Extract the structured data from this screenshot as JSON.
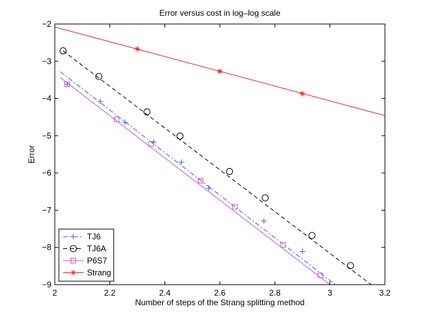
{
  "chart_data": {
    "type": "line",
    "title": "Error versus cost in log–log scale",
    "xlabel": "Number of steps of the Strang splitting method",
    "ylabel": "Error",
    "xlim": [
      2,
      3.2
    ],
    "ylim": [
      -9,
      -2
    ],
    "x_ticks": [
      2,
      2.2,
      2.4,
      2.6,
      2.8,
      3,
      3.2
    ],
    "x_tick_labels": [
      "2",
      "2.2",
      "2.4",
      "2.6",
      "2.8",
      "3",
      "3.2"
    ],
    "y_ticks": [
      -9,
      -8,
      -7,
      -6,
      -5,
      -4,
      -3,
      -2
    ],
    "y_tick_labels": [
      "−9",
      "−8",
      "−7",
      "−6",
      "−5",
      "−4",
      "−3",
      "−2"
    ],
    "grid": false,
    "legend_position": "bottom-left",
    "series": [
      {
        "name": "TJ6",
        "color": "#3b5bdb",
        "line_style": "dashdot",
        "marker": "plus",
        "line": [
          [
            2.02,
            -3.28
          ],
          [
            3.02,
            -9.0
          ]
        ],
        "markers": [
          [
            2.045,
            -3.62
          ],
          [
            2.165,
            -4.08
          ],
          [
            2.255,
            -4.64
          ],
          [
            2.36,
            -5.17
          ],
          [
            2.46,
            -5.71
          ],
          [
            2.56,
            -6.41
          ],
          [
            2.76,
            -7.29
          ],
          [
            2.9,
            -8.11
          ]
        ]
      },
      {
        "name": "TJ6A",
        "color": "#000000",
        "line_style": "dashed",
        "marker": "circle",
        "line": [
          [
            2.03,
            -2.72
          ],
          [
            3.15,
            -9.0
          ]
        ],
        "markers": [
          [
            2.03,
            -2.72
          ],
          [
            2.16,
            -3.41
          ],
          [
            2.335,
            -4.36
          ],
          [
            2.455,
            -5.01
          ],
          [
            2.635,
            -5.96
          ],
          [
            2.765,
            -6.67
          ],
          [
            2.935,
            -7.68
          ],
          [
            3.075,
            -8.49
          ]
        ]
      },
      {
        "name": "P6S7",
        "color": "#c45cd6",
        "line_style": "solid",
        "marker": "square",
        "line": [
          [
            2.02,
            -3.44
          ],
          [
            3.0,
            -9.0
          ]
        ],
        "markers": [
          [
            2.045,
            -3.62
          ],
          [
            2.225,
            -4.56
          ],
          [
            2.35,
            -5.22
          ],
          [
            2.53,
            -6.21
          ],
          [
            2.655,
            -6.91
          ],
          [
            2.83,
            -7.93
          ],
          [
            2.965,
            -8.75
          ]
        ]
      },
      {
        "name": "Strang",
        "color": "#e8272e",
        "line_style": "solid",
        "marker": "asterisk",
        "line": [
          [
            2.0,
            -2.08
          ],
          [
            3.2,
            -4.46
          ]
        ],
        "markers": [
          [
            2.3,
            -2.67
          ],
          [
            2.6,
            -3.27
          ],
          [
            2.9,
            -3.87
          ]
        ]
      }
    ]
  }
}
